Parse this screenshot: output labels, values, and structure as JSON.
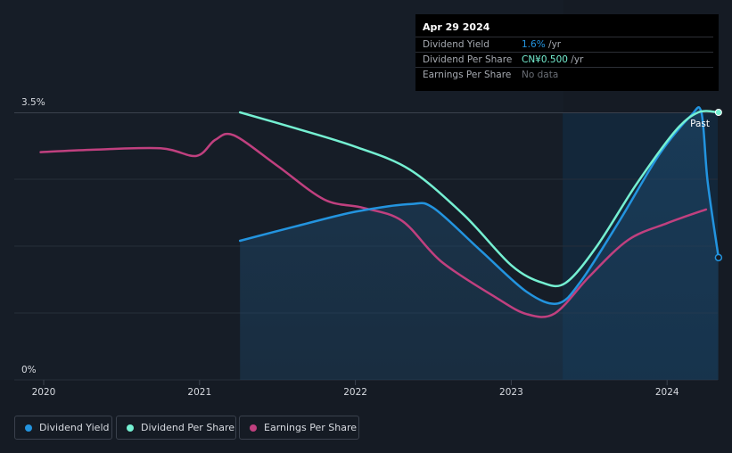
{
  "tooltip": {
    "date": "Apr 29 2024",
    "rows": [
      {
        "label": "Dividend Yield",
        "value": "1.6%",
        "unit": " /yr",
        "color": "#2394df"
      },
      {
        "label": "Dividend Per Share",
        "value": "CN¥0.500",
        "unit": " /yr",
        "color": "#75f0d2"
      },
      {
        "label": "Earnings Per Share",
        "value": "No data",
        "unit": "",
        "color": "#6a6e75"
      }
    ]
  },
  "legend": [
    {
      "label": "Dividend Yield",
      "color": "#2394df"
    },
    {
      "label": "Dividend Per Share",
      "color": "#75f0d2"
    },
    {
      "label": "Earnings Per Share",
      "color": "#c0407f"
    }
  ],
  "chart_data": {
    "type": "line",
    "title": "",
    "y_axis_labels": [
      "3.5%",
      "0%"
    ],
    "ylim": [
      0,
      3.5
    ],
    "xlim": [
      2019.98,
      2024.33
    ],
    "x_ticks": [
      2020,
      2021,
      2022,
      2023,
      2024
    ],
    "x_tick_labels": [
      "2020",
      "2021",
      "2022",
      "2023",
      "2024"
    ],
    "forecast_start": 2023.33,
    "past_label": "Past",
    "series": [
      {
        "name": "Dividend Yield",
        "color": "#2394df",
        "fill": true,
        "points": [
          [
            2021.26,
            1.82
          ],
          [
            2021.6,
            2.0
          ],
          [
            2022.0,
            2.2
          ],
          [
            2022.35,
            2.3
          ],
          [
            2022.5,
            2.25
          ],
          [
            2022.8,
            1.7
          ],
          [
            2023.1,
            1.15
          ],
          [
            2023.3,
            1.0
          ],
          [
            2023.45,
            1.3
          ],
          [
            2023.7,
            2.1
          ],
          [
            2023.95,
            2.95
          ],
          [
            2024.15,
            3.45
          ],
          [
            2024.22,
            3.5
          ],
          [
            2024.26,
            2.6
          ],
          [
            2024.33,
            1.6
          ]
        ]
      },
      {
        "name": "Dividend Per Share",
        "color": "#75f0d2",
        "fill": false,
        "points": [
          [
            2021.26,
            3.5
          ],
          [
            2021.6,
            3.3
          ],
          [
            2022.0,
            3.05
          ],
          [
            2022.35,
            2.75
          ],
          [
            2022.7,
            2.15
          ],
          [
            2023.0,
            1.5
          ],
          [
            2023.2,
            1.27
          ],
          [
            2023.35,
            1.27
          ],
          [
            2023.55,
            1.75
          ],
          [
            2023.8,
            2.55
          ],
          [
            2024.05,
            3.25
          ],
          [
            2024.2,
            3.5
          ],
          [
            2024.33,
            3.5
          ]
        ]
      },
      {
        "name": "Earnings Per Share",
        "color": "#c0407f",
        "fill": false,
        "points": [
          [
            2019.98,
            2.98
          ],
          [
            2020.3,
            3.01
          ],
          [
            2020.75,
            3.03
          ],
          [
            2020.98,
            2.93
          ],
          [
            2021.1,
            3.14
          ],
          [
            2021.22,
            3.2
          ],
          [
            2021.5,
            2.8
          ],
          [
            2021.8,
            2.36
          ],
          [
            2022.05,
            2.25
          ],
          [
            2022.3,
            2.08
          ],
          [
            2022.55,
            1.55
          ],
          [
            2022.9,
            1.08
          ],
          [
            2023.1,
            0.86
          ],
          [
            2023.28,
            0.87
          ],
          [
            2023.5,
            1.35
          ],
          [
            2023.75,
            1.83
          ],
          [
            2024.0,
            2.05
          ],
          [
            2024.25,
            2.23
          ]
        ]
      }
    ]
  }
}
